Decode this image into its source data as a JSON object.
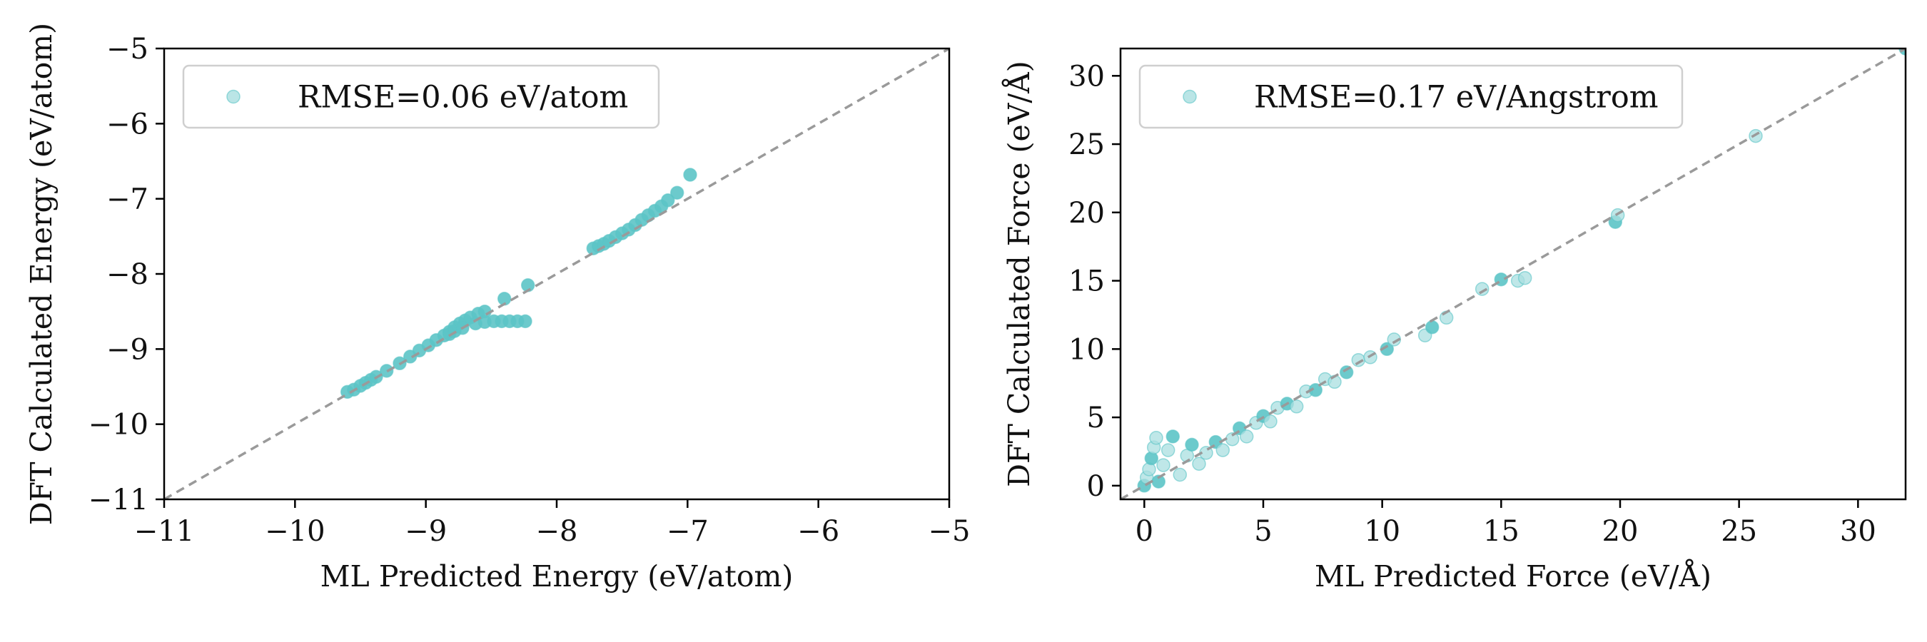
{
  "colors": {
    "points": "#5cc4c6",
    "points_light": "#a9dfe0",
    "identity_line": "#9a9a9a",
    "axes": "#000000",
    "legend_border": "#cfcfcf"
  },
  "chart_data": [
    {
      "type": "scatter",
      "title": "",
      "xlabel": "ML Predicted Energy (eV/atom)",
      "ylabel": "DFT Calculated Energy (eV/atom)",
      "xlim": [
        -11,
        -5
      ],
      "ylim": [
        -11,
        -5
      ],
      "xticks": [
        -11,
        -10,
        -9,
        -8,
        -7,
        -6,
        -5
      ],
      "yticks": [
        -11,
        -10,
        -9,
        -8,
        -7,
        -6,
        -5
      ],
      "xtick_labels": [
        "−11",
        "−10",
        "−9",
        "−8",
        "−7",
        "−6",
        "−5"
      ],
      "ytick_labels": [
        "−11",
        "−10",
        "−9",
        "−8",
        "−7",
        "−6",
        "−5"
      ],
      "identity_line": true,
      "grid": false,
      "legend": {
        "position": "top-left",
        "label": "RMSE=0.06 eV/atom"
      },
      "series": [
        {
          "name": "RMSE=0.06 eV/atom",
          "points": [
            [
              -9.6,
              -9.57
            ],
            [
              -9.55,
              -9.54
            ],
            [
              -9.5,
              -9.49
            ],
            [
              -9.46,
              -9.45
            ],
            [
              -9.42,
              -9.41
            ],
            [
              -9.38,
              -9.37
            ],
            [
              -9.3,
              -9.29
            ],
            [
              -9.2,
              -9.19
            ],
            [
              -9.12,
              -9.1
            ],
            [
              -9.05,
              -9.02
            ],
            [
              -8.98,
              -8.95
            ],
            [
              -8.92,
              -8.88
            ],
            [
              -8.86,
              -8.82
            ],
            [
              -8.82,
              -8.77
            ],
            [
              -8.78,
              -8.71
            ],
            [
              -8.74,
              -8.66
            ],
            [
              -8.7,
              -8.62
            ],
            [
              -8.66,
              -8.58
            ],
            [
              -8.6,
              -8.53
            ],
            [
              -8.55,
              -8.5
            ],
            [
              -8.82,
              -8.8
            ],
            [
              -8.78,
              -8.76
            ],
            [
              -8.72,
              -8.72
            ],
            [
              -8.62,
              -8.66
            ],
            [
              -8.55,
              -8.64
            ],
            [
              -8.48,
              -8.63
            ],
            [
              -8.42,
              -8.63
            ],
            [
              -8.36,
              -8.63
            ],
            [
              -8.3,
              -8.63
            ],
            [
              -8.24,
              -8.63
            ],
            [
              -8.4,
              -8.33
            ],
            [
              -8.22,
              -8.15
            ],
            [
              -7.72,
              -7.66
            ],
            [
              -7.68,
              -7.63
            ],
            [
              -7.64,
              -7.6
            ],
            [
              -7.6,
              -7.56
            ],
            [
              -7.55,
              -7.51
            ],
            [
              -7.5,
              -7.46
            ],
            [
              -7.45,
              -7.41
            ],
            [
              -7.4,
              -7.35
            ],
            [
              -7.35,
              -7.28
            ],
            [
              -7.3,
              -7.22
            ],
            [
              -7.25,
              -7.16
            ],
            [
              -7.2,
              -7.1
            ],
            [
              -7.15,
              -7.02
            ],
            [
              -7.08,
              -6.92
            ],
            [
              -6.98,
              -6.68
            ]
          ]
        }
      ]
    },
    {
      "type": "scatter",
      "title": "",
      "xlabel": "ML Predicted Force (eV/Å)",
      "ylabel": "DFT Calculated Force (eV/Å)",
      "xlim": [
        -1,
        32
      ],
      "ylim": [
        -1,
        32
      ],
      "xticks": [
        0,
        5,
        10,
        15,
        20,
        25,
        30
      ],
      "yticks": [
        0,
        5,
        10,
        15,
        20,
        25,
        30
      ],
      "xtick_labels": [
        "0",
        "5",
        "10",
        "15",
        "20",
        "25",
        "30"
      ],
      "ytick_labels": [
        "0",
        "5",
        "10",
        "15",
        "20",
        "25",
        "30"
      ],
      "identity_line": true,
      "grid": false,
      "legend": {
        "position": "top-left",
        "label": "RMSE=0.17 eV/Angstrom"
      },
      "series": [
        {
          "name": "RMSE=0.17 eV/Angstrom",
          "points": [
            [
              0.0,
              0.0
            ],
            [
              0.1,
              0.6
            ],
            [
              0.2,
              1.2
            ],
            [
              0.3,
              2.0
            ],
            [
              0.4,
              2.8
            ],
            [
              0.5,
              3.5
            ],
            [
              0.6,
              0.3
            ],
            [
              0.8,
              1.5
            ],
            [
              1.0,
              2.6
            ],
            [
              1.2,
              3.6
            ],
            [
              1.5,
              0.8
            ],
            [
              1.8,
              2.2
            ],
            [
              2.0,
              3.0
            ],
            [
              2.3,
              1.6
            ],
            [
              2.6,
              2.4
            ],
            [
              3.0,
              3.2
            ],
            [
              3.3,
              2.6
            ],
            [
              3.7,
              3.4
            ],
            [
              4.0,
              4.2
            ],
            [
              4.3,
              3.6
            ],
            [
              4.7,
              4.6
            ],
            [
              5.0,
              5.1
            ],
            [
              5.3,
              4.7
            ],
            [
              5.6,
              5.7
            ],
            [
              6.0,
              6.0
            ],
            [
              6.4,
              5.8
            ],
            [
              6.8,
              6.9
            ],
            [
              7.2,
              7.0
            ],
            [
              7.6,
              7.8
            ],
            [
              8.0,
              7.6
            ],
            [
              8.5,
              8.3
            ],
            [
              9.0,
              9.2
            ],
            [
              9.5,
              9.4
            ],
            [
              10.2,
              10.0
            ],
            [
              10.5,
              10.7
            ],
            [
              11.8,
              11.0
            ],
            [
              12.1,
              11.6
            ],
            [
              12.7,
              12.3
            ],
            [
              14.2,
              14.4
            ],
            [
              15.0,
              15.1
            ],
            [
              15.7,
              15.0
            ],
            [
              16.0,
              15.2
            ],
            [
              19.8,
              19.3
            ],
            [
              19.9,
              19.8
            ],
            [
              25.7,
              25.6
            ],
            [
              32.0,
              32.0
            ]
          ]
        }
      ]
    }
  ]
}
